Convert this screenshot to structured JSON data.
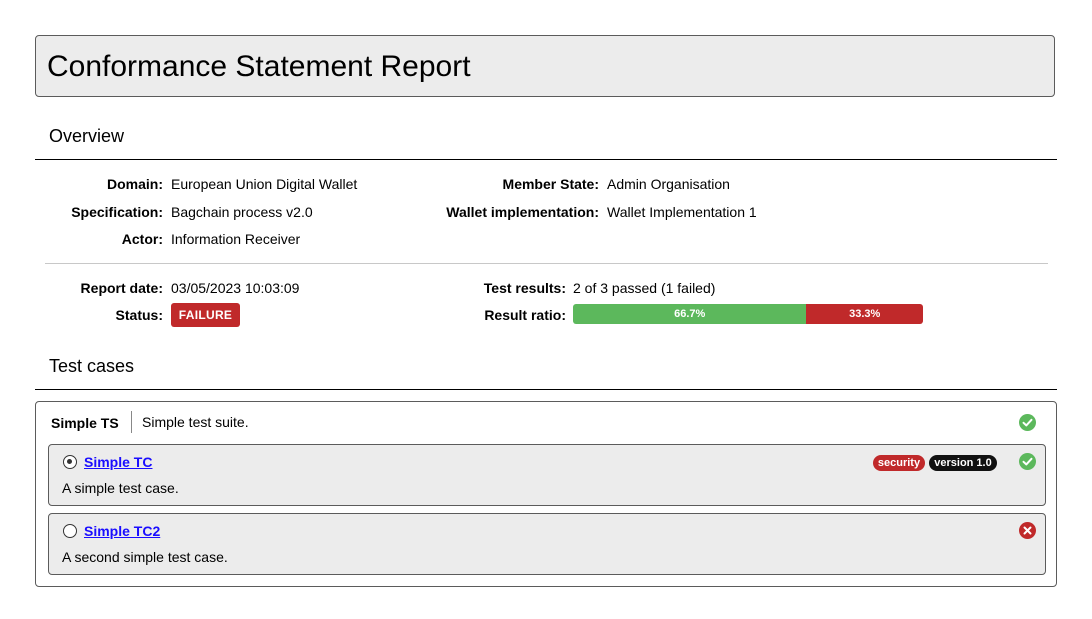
{
  "report": {
    "title": "Conformance Statement Report"
  },
  "overview": {
    "heading": "Overview",
    "domain": {
      "label": "Domain:",
      "value": "European Union Digital Wallet"
    },
    "specification": {
      "label": "Specification:",
      "value": "Bagchain process v2.0"
    },
    "actor": {
      "label": "Actor:",
      "value": "Information Receiver"
    },
    "member_state": {
      "label": "Member State:",
      "value": "Admin Organisation"
    },
    "wallet": {
      "label": "Wallet implementation:",
      "value": "Wallet Implementation 1"
    },
    "report_date": {
      "label": "Report date:",
      "value": "03/05/2023 10:03:09"
    },
    "status": {
      "label": "Status:",
      "value": "FAILURE",
      "color": "#c0292a"
    },
    "test_results": {
      "label": "Test results:",
      "value": "2 of 3 passed (1 failed)"
    },
    "result_ratio": {
      "label": "Result ratio:",
      "passed_fraction": 0.667,
      "failed_fraction": 0.333,
      "passed_text": "66.7%",
      "failed_text": "33.3%",
      "passed_color": "#5cb85c",
      "failed_color": "#c0292a"
    }
  },
  "test_cases": {
    "heading": "Test cases",
    "suite": {
      "name": "Simple TS",
      "description": "Simple test suite.",
      "result_icon": "check-circle-icon",
      "cases": [
        {
          "name": "Simple TC",
          "description": "A simple test case.",
          "selected": true,
          "tags": [
            "security",
            "version 1.0"
          ],
          "result_icon": "check-circle-icon"
        },
        {
          "name": "Simple TC2",
          "description": "A second simple test case.",
          "selected": false,
          "tags": [],
          "result_icon": "x-circle-icon"
        }
      ]
    }
  }
}
